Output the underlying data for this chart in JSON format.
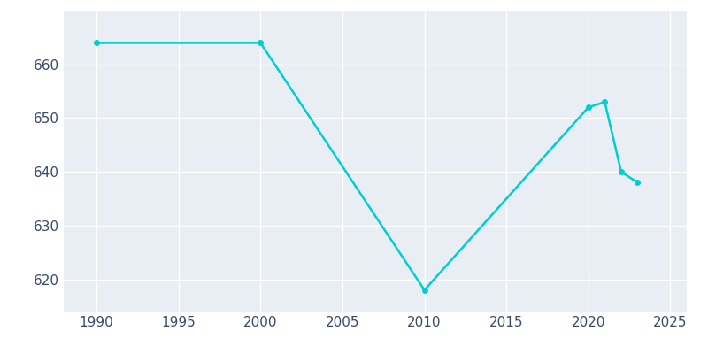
{
  "years": [
    1990,
    2000,
    2010,
    2020,
    2021,
    2022,
    2023
  ],
  "population": [
    664,
    664,
    618,
    652,
    653,
    640,
    638
  ],
  "line_color": "#00CED1",
  "background_color": "#E8EEF4",
  "outer_background": "#FFFFFF",
  "grid_color": "#FFFFFF",
  "text_color": "#3A4A6B",
  "xlim": [
    1988,
    2026
  ],
  "ylim": [
    614,
    670
  ],
  "xticks": [
    1990,
    1995,
    2000,
    2005,
    2010,
    2015,
    2020,
    2025
  ],
  "yticks": [
    620,
    630,
    640,
    650,
    660
  ],
  "linewidth": 1.8,
  "figsize": [
    8.0,
    4.0
  ],
  "dpi": 100,
  "marker": "o",
  "markersize": 4
}
